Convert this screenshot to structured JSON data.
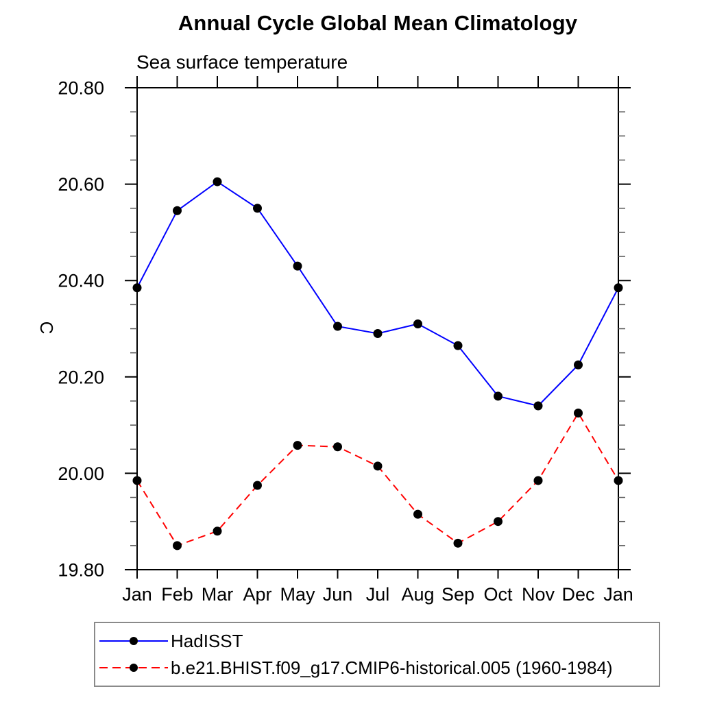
{
  "chart": {
    "title": "Annual Cycle Global Mean Climatology",
    "subtitle": "Sea surface temperature",
    "y_axis_label": "C"
  },
  "legend": {
    "entries": [
      {
        "label": "HadISST",
        "line_color": "#0000ff",
        "line_style": "solid",
        "marker": "filled-circle",
        "marker_color": "#000000"
      },
      {
        "label": "b.e21.BHIST.f09_g17.CMIP6-historical.005 (1960-1984)",
        "line_color": "#ff0000",
        "line_style": "dashed",
        "marker": "filled-circle",
        "marker_color": "#000000"
      }
    ]
  },
  "chart_data": {
    "type": "line",
    "title": "Annual Cycle Global Mean Climatology",
    "subtitle": "Sea surface temperature",
    "xlabel": "",
    "ylabel": "C",
    "categories": [
      "Jan",
      "Feb",
      "Mar",
      "Apr",
      "May",
      "Jun",
      "Jul",
      "Aug",
      "Sep",
      "Oct",
      "Nov",
      "Dec",
      "Jan"
    ],
    "series": [
      {
        "name": "HadISST",
        "color": "#0000ff",
        "style": "solid",
        "marker": "filled-circle",
        "marker_color": "#000000",
        "values": [
          20.385,
          20.545,
          20.605,
          20.55,
          20.43,
          20.305,
          20.29,
          20.31,
          20.265,
          20.16,
          20.14,
          20.225,
          20.385
        ]
      },
      {
        "name": "b.e21.BHIST.f09_g17.CMIP6-historical.005 (1960-1984)",
        "color": "#ff0000",
        "style": "dashed",
        "marker": "filled-circle",
        "marker_color": "#000000",
        "values": [
          19.985,
          19.85,
          19.88,
          19.975,
          20.058,
          20.055,
          20.015,
          19.915,
          19.855,
          19.9,
          19.985,
          20.125,
          19.985
        ]
      }
    ],
    "ylim": [
      19.8,
      20.8
    ],
    "y_major_step": 0.2,
    "y_minor_step": 0.05,
    "y_tick_labels": [
      "19.80",
      "20.00",
      "20.20",
      "20.40",
      "20.60",
      "20.80"
    ],
    "grid": false,
    "legend_position": "bottom-left"
  }
}
